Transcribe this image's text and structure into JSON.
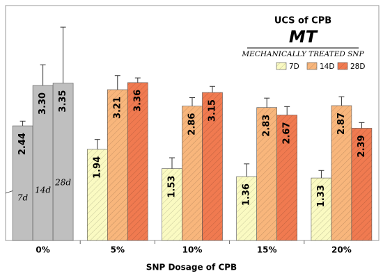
{
  "chart_data": {
    "type": "bar",
    "title": "UCS of CPB",
    "subtitle": "MT",
    "legend_title": "MECHANICALLY TREATED SNP",
    "x_label": "SNP Dosage of CPB",
    "categories": [
      "0%",
      "5%",
      "10%",
      "15%",
      "20%"
    ],
    "ylim": [
      0,
      5
    ],
    "annotations": [
      "7d",
      "14d",
      "28d"
    ],
    "series": [
      {
        "name": "7D",
        "color": "#fafac2",
        "colors": [
          "#bfbfbf",
          "#fafac2",
          "#fafac2",
          "#fafac2",
          "#fafac2"
        ],
        "values": [
          2.44,
          1.94,
          1.53,
          1.36,
          1.33
        ],
        "value_labels": [
          "2.44",
          "1.94",
          "1.53",
          "1.36",
          "1.33"
        ],
        "errors": [
          0.1,
          0.21,
          0.23,
          0.27,
          0.16
        ]
      },
      {
        "name": "14D",
        "color": "#f8b67c",
        "colors": [
          "#bfbfbf",
          "#f8b67c",
          "#f8b67c",
          "#f8b67c",
          "#f8b67c"
        ],
        "values": [
          3.3,
          3.21,
          2.86,
          2.83,
          2.87
        ],
        "value_labels": [
          "3.30",
          "3.21",
          "2.86",
          "2.83",
          "2.87"
        ],
        "errors": [
          0.44,
          0.3,
          0.18,
          0.2,
          0.19
        ]
      },
      {
        "name": "28D",
        "color": "#f07a50",
        "colors": [
          "#bfbfbf",
          "#f07a50",
          "#f07a50",
          "#f07a50",
          "#f07a50"
        ],
        "values": [
          3.35,
          3.36,
          3.15,
          2.67,
          2.39
        ],
        "value_labels": [
          "3.35",
          "3.36",
          "3.15",
          "2.67",
          "2.39"
        ],
        "errors": [
          1.19,
          0.1,
          0.13,
          0.18,
          0.12
        ]
      }
    ]
  }
}
